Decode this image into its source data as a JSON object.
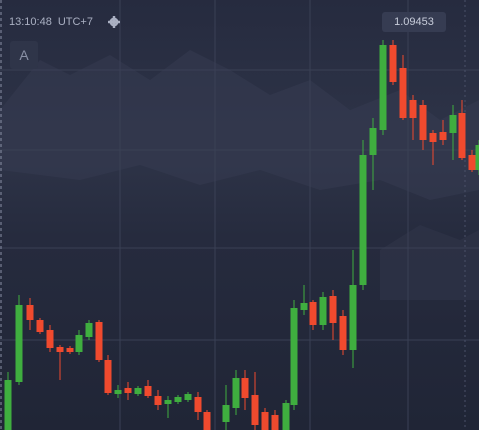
{
  "header": {
    "time": "13:10:48",
    "timezone": "UTC+7"
  },
  "price_label": "1.09453",
  "button": "A"
}
